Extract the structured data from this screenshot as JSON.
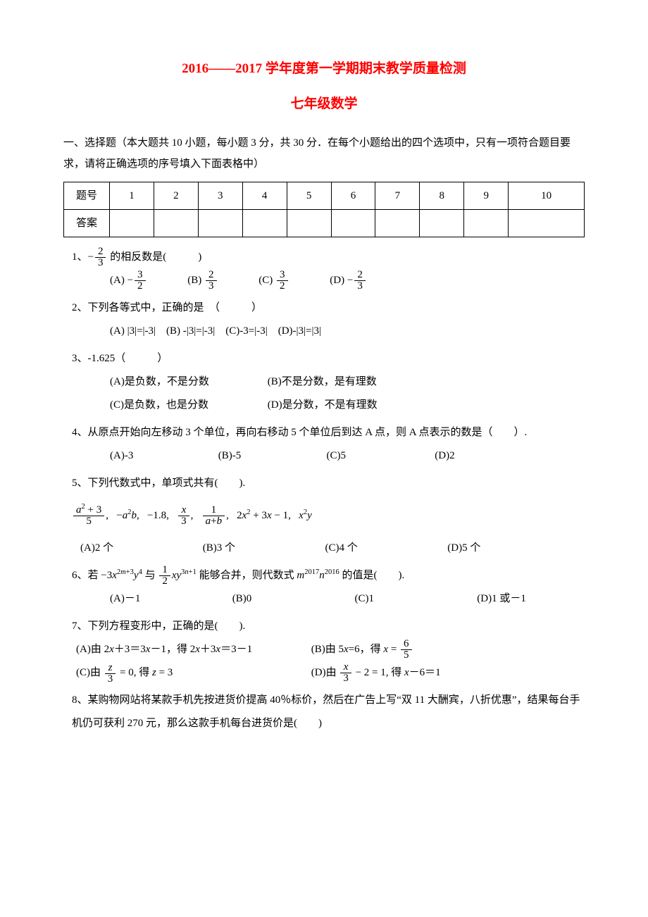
{
  "title_main": "2016——2017 学年度第一学期期末教学质量检测",
  "title_sub": "七年级数学",
  "section1_intro": "一、选择题（本大题共 10 小题，每小题 3 分，共 30 分．在每个小题给出的四个选项中，只有一项符合题目要求，请将正确选项的序号填入下面表格中）",
  "grid": {
    "row1_label": "题号",
    "row2_label": "答案",
    "cols": [
      "1",
      "2",
      "3",
      "4",
      "5",
      "6",
      "7",
      "8",
      "9",
      "10"
    ]
  },
  "q1": {
    "stem_pre": "1、",
    "stem_post": " 的相反数是(　　　)",
    "frac": {
      "sign": "−",
      "num": "2",
      "den": "3"
    },
    "A": {
      "sign": "−",
      "num": "3",
      "den": "2"
    },
    "B": {
      "sign": "",
      "num": "2",
      "den": "3"
    },
    "C": {
      "sign": "",
      "num": "3",
      "den": "2"
    },
    "D": {
      "sign": "−",
      "num": "2",
      "den": "3"
    }
  },
  "q2": {
    "stem": "2、下列各等式中，正确的是　（　　　）",
    "A": "(A) |3|=|-3|",
    "B": "(B) -|3|=|-3|",
    "C": "(C)-3=|-3|",
    "D": "(D)-|3|=|3|"
  },
  "q3": {
    "stem": "3、-1.625（　　　）",
    "A": "(A)是负数，不是分数",
    "B": "(B)不是分数，是有理数",
    "C": "(C)是负数，也是分数",
    "D": "(D)是分数，不是有理数"
  },
  "q4": {
    "stem": "4、从原点开始向左移动 3 个单位，再向右移动 5 个单位后到达 A 点，则 A 点表示的数是（　　）.",
    "A": "(A)-3",
    "B": "(B)-5",
    "C": "(C)5",
    "D": "(D)2"
  },
  "q5": {
    "stem": "5、下列代数式中，单项式共有(　　).",
    "A": "(A)2 个",
    "B": "(B)3 个",
    "C": "(C)4 个",
    "D": "(D)5 个"
  },
  "q6": {
    "stem_post": "能够合并，则代数式",
    "stem_end": "的值是(　　).",
    "A": "(A)－1",
    "B": "(B)0",
    "C": "(C)1",
    "D": "(D)1 或－1"
  },
  "q7": {
    "stem": "7、下列方程变形中，正确的是(　　).",
    "B_frac": {
      "num": "6",
      "den": "5"
    }
  },
  "q8": {
    "stem": "8、某购物网站将某款手机先按进货价提高 40％标价，然后在广告上写“双 11 大酬宾，八折优惠”，结果每台手机仍可获利 270 元，那么这款手机每台进货价是(　　)"
  },
  "labels": {
    "A": "(A)",
    "B": "(B)",
    "C": "(C)",
    "D": "(D)"
  }
}
